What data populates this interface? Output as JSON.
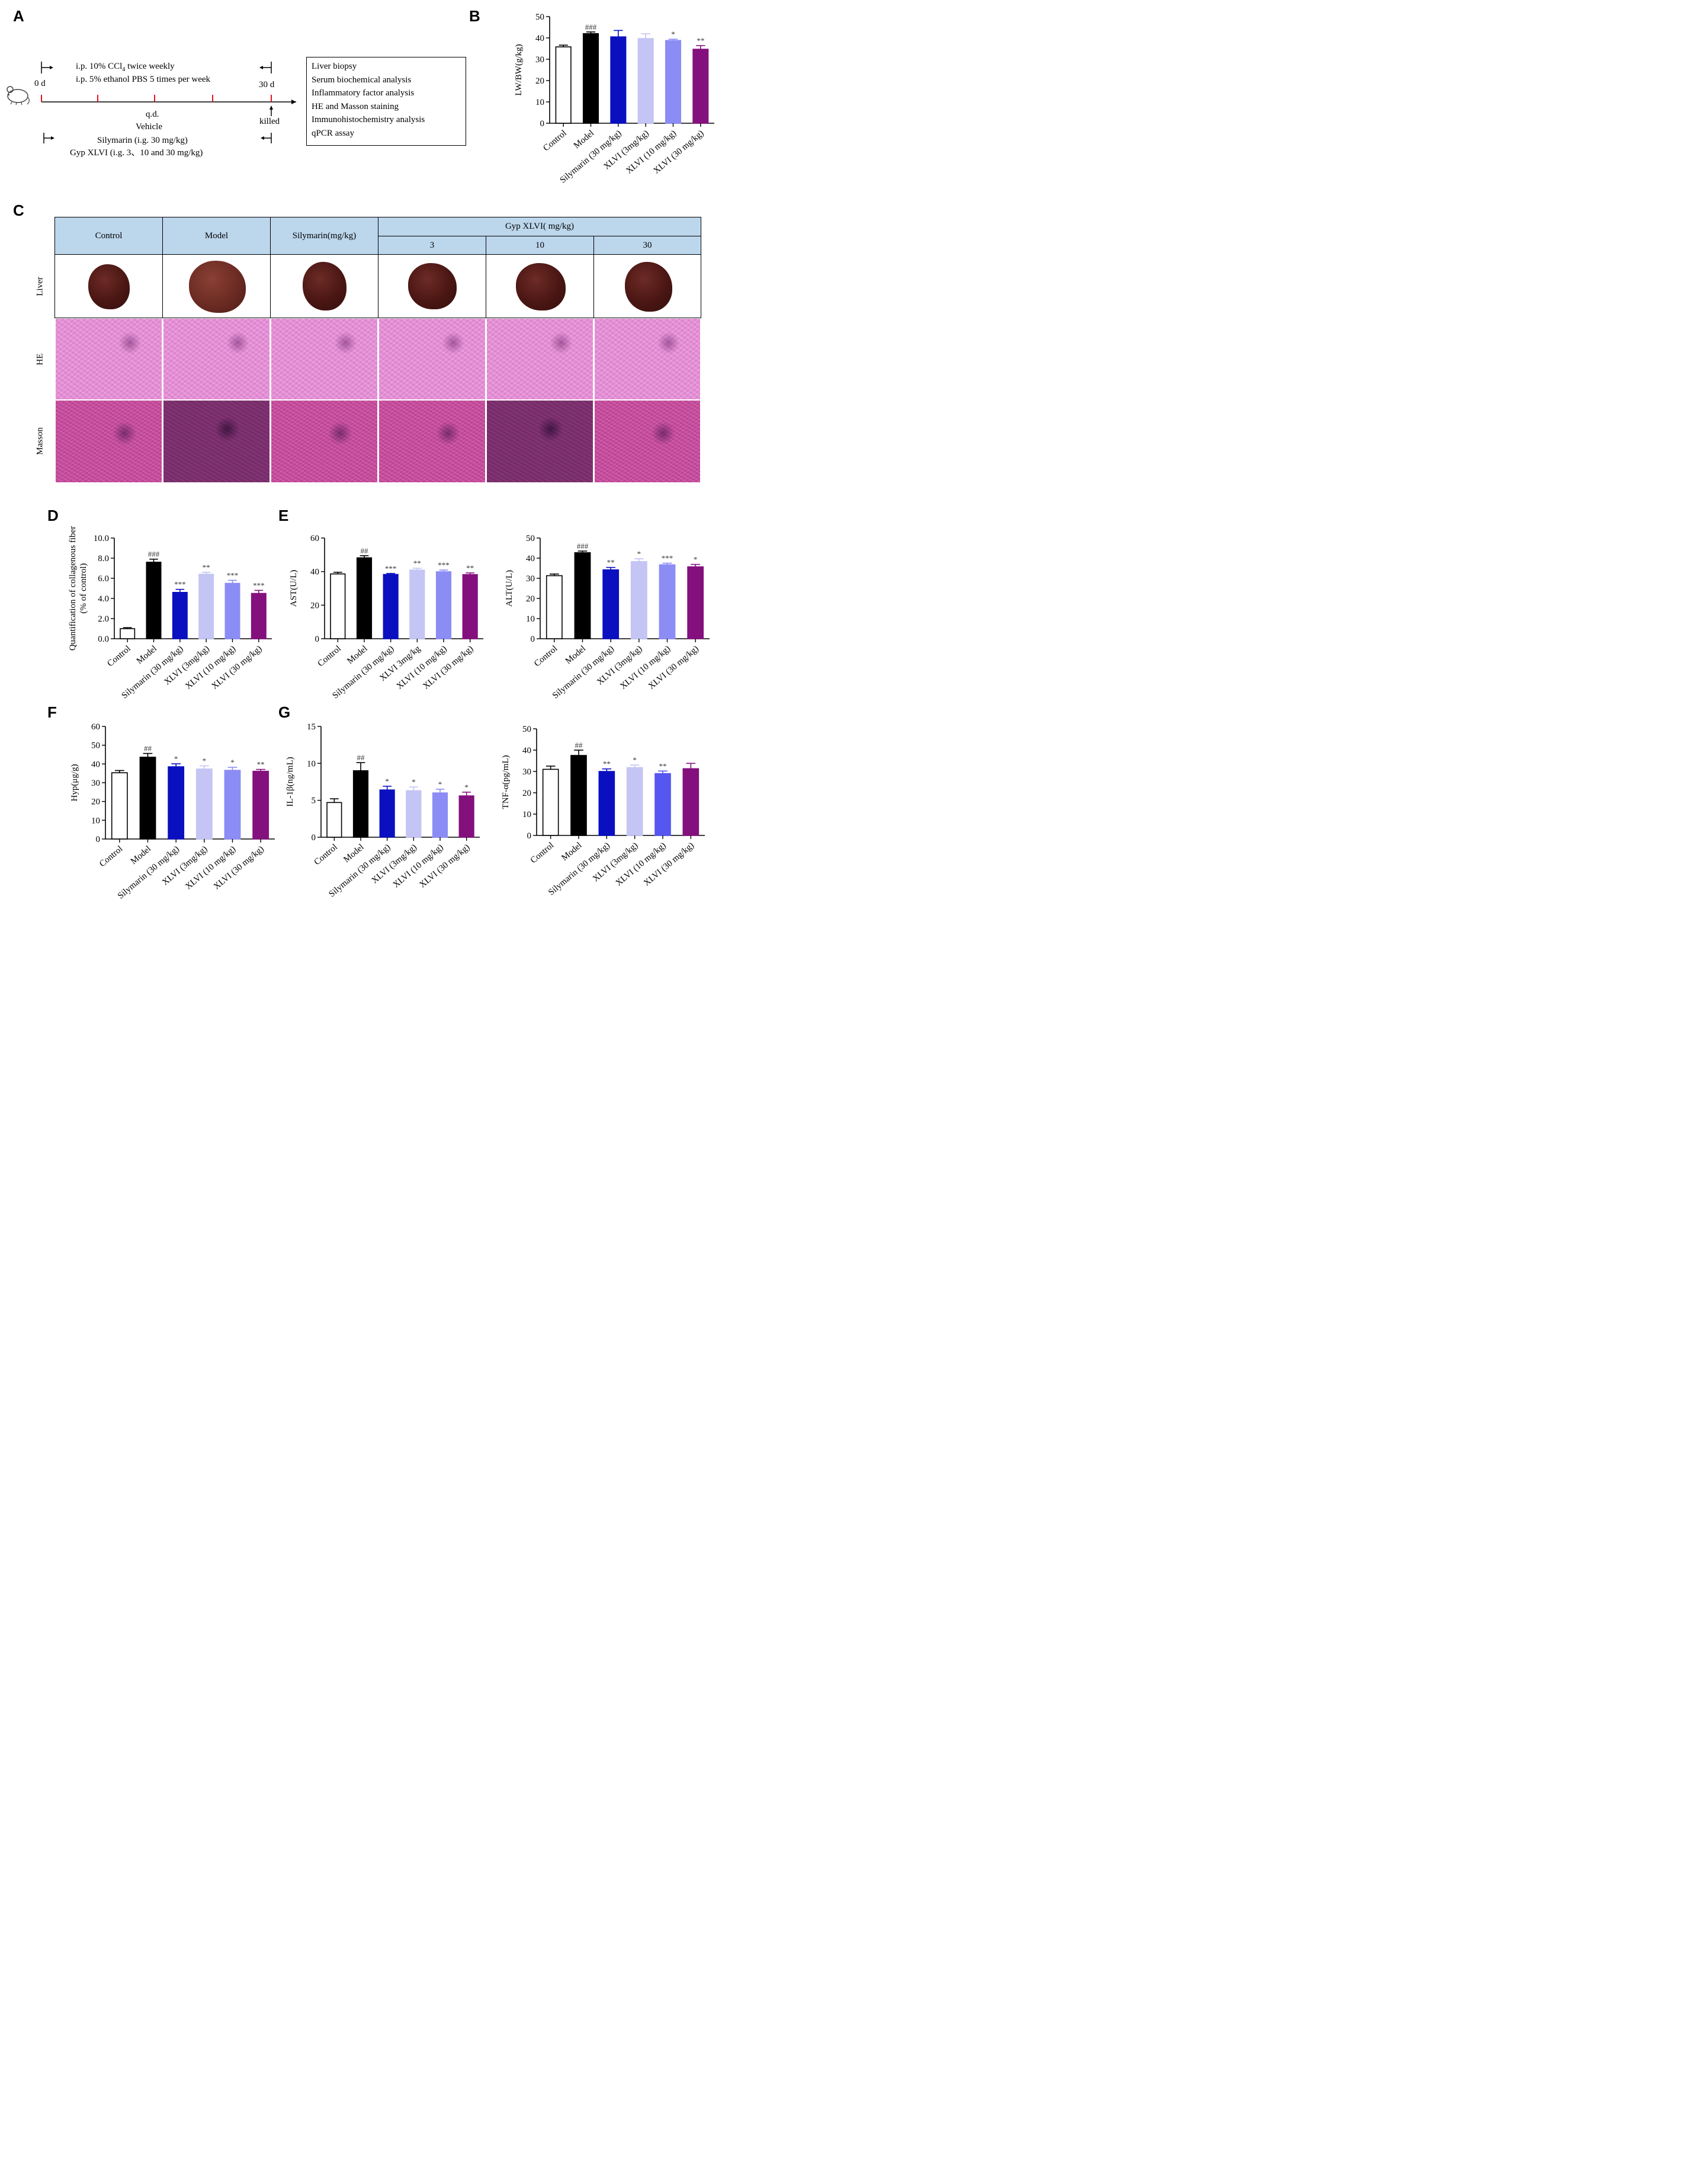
{
  "panels": {
    "A": "A",
    "B": "B",
    "C": "C",
    "D": "D",
    "E": "E",
    "F": "F",
    "G": "G"
  },
  "schematic": {
    "day_start": "0 d",
    "day_end": "30 d",
    "model_line1": "i.p. 10% CCl",
    "model_line1_sub": "4",
    "model_line1_tail": " twice weekly",
    "model_line2": "i.p. 5% ethanol PBS 5 times per week",
    "qd": "q.d.",
    "vehicle": "Vehicle",
    "silymarin": "Silymarin (i.g. 30 mg/kg)",
    "gyp": "Gyp XLVI (i.g. 3、10 and 30 mg/kg)",
    "killed": "killed",
    "steps": [
      "Liver biopsy",
      "Serum biochemical analysis",
      "Inflammatory factor analysis",
      "HE and Masson staining",
      "Immunohistochemistry analysis",
      "qPCR assay"
    ]
  },
  "table_c": {
    "headers": [
      "Control",
      "Model",
      "Silymarin(mg/kg)"
    ],
    "gyp_header": "Gyp XLVI( mg/kg)",
    "doses": [
      "3",
      "10",
      "30"
    ],
    "rows": [
      "Liver",
      "HE",
      "Masson"
    ]
  },
  "colors": {
    "control": "#ffffff",
    "model": "#000000",
    "silymarin": "#0a10c0",
    "xlvi3": "#c4c4f5",
    "xlvi10": "#8c8cf5",
    "xlvi30": "#84107e",
    "tnf_xlvi10": "#5656f0"
  },
  "chart_data": [
    {
      "id": "B",
      "type": "bar",
      "ylabel": "LW/BW(g/kg)",
      "ylim": [
        0,
        50
      ],
      "yticks": [
        "0",
        "10",
        "20",
        "30",
        "40",
        "50"
      ],
      "categories": [
        "Control",
        "Model",
        "Silymarin (30 mg/kg)",
        "XLVI (3mg/kg)",
        "XLVI (10 mg/kg)",
        "XLVI (30 mg/kg)"
      ],
      "values": [
        35.8,
        42,
        40.5,
        39.7,
        38.8,
        34.7
      ],
      "errors": [
        0.8,
        0.8,
        3,
        2.2,
        0.6,
        1.7
      ],
      "annotations": [
        "",
        "###",
        "",
        "",
        "*",
        "**"
      ]
    },
    {
      "id": "D",
      "type": "bar",
      "ylabel": "Quantification of collagenous fiber",
      "ylabel2": "(% of control)",
      "ylim": [
        0,
        10
      ],
      "yticks": [
        "0.0",
        "2.0",
        "4.0",
        "6.0",
        "8.0",
        "10.0"
      ],
      "categories": [
        "Control",
        "Model",
        "Silymarin (30 mg/kg)",
        "XLVI (3mg/kg)",
        "XLVI (10 mg/kg)",
        "XLVI (30 mg/kg)"
      ],
      "values": [
        1.0,
        7.6,
        4.6,
        6.4,
        5.5,
        4.5
      ],
      "errors": [
        0.1,
        0.3,
        0.3,
        0.2,
        0.3,
        0.3
      ],
      "annotations": [
        "",
        "###",
        "***",
        "**",
        "***",
        "***"
      ]
    },
    {
      "id": "E1",
      "type": "bar",
      "ylabel": "AST(U/L)",
      "ylim": [
        0,
        60
      ],
      "yticks": [
        "0",
        "20",
        "40",
        "60"
      ],
      "categories": [
        "Control",
        "Model",
        "Silymarin (30 mg/kg)",
        "XLVI 3mg/kg",
        "XLVI (10 mg/kg)",
        "XLVI (30 mg/kg)"
      ],
      "values": [
        38.6,
        48.2,
        38.3,
        40.9,
        39.9,
        38.2
      ],
      "errors": [
        1,
        1.3,
        0.6,
        1.1,
        1,
        1
      ],
      "annotations": [
        "",
        "##",
        "***",
        "**",
        "***",
        "**"
      ]
    },
    {
      "id": "E2",
      "type": "bar",
      "ylabel": "ALT(U/L)",
      "ylim": [
        0,
        50
      ],
      "yticks": [
        "0",
        "10",
        "20",
        "30",
        "40",
        "50"
      ],
      "categories": [
        "Control",
        "Model",
        "Silymarin (30 mg/kg)",
        "XLVI (3mg/kg)",
        "XLVI (10 mg/kg)",
        "XLVI (30 mg/kg)"
      ],
      "values": [
        31.3,
        42.7,
        34.2,
        38.3,
        36.7,
        35.7
      ],
      "errors": [
        0.8,
        0.8,
        1.2,
        1.4,
        0.8,
        1.2
      ],
      "annotations": [
        "",
        "###",
        "**",
        "*",
        "***",
        "*"
      ]
    },
    {
      "id": "F",
      "type": "bar",
      "ylabel": "Hyp(μg/g)",
      "ylim": [
        0,
        60
      ],
      "yticks": [
        "0",
        "10",
        "20",
        "30",
        "40",
        "50",
        "60"
      ],
      "categories": [
        "Control",
        "Model",
        "Silymarin (30 mg/kg)",
        "XLVI (3mg/kg)",
        "XLVI (10 mg/kg)",
        "XLVI (30 mg/kg)"
      ],
      "values": [
        35.3,
        43.6,
        38.5,
        37.3,
        36.6,
        36.1
      ],
      "errors": [
        1.2,
        2,
        1.6,
        1.7,
        1.6,
        1
      ],
      "annotations": [
        "",
        "##",
        "*",
        "*",
        "*",
        "**"
      ]
    },
    {
      "id": "G1",
      "type": "bar",
      "ylabel": "IL-1β(ng/mL)",
      "ylim": [
        0,
        15
      ],
      "yticks": [
        "0",
        "5",
        "10",
        "15"
      ],
      "categories": [
        "Control",
        "Model",
        "Silymarin (30 mg/kg)",
        "XLVI (3mg/kg)",
        "XLVI (10 mg/kg)",
        "XLVI (30 mg/kg)"
      ],
      "values": [
        4.7,
        9.0,
        6.4,
        6.3,
        6.0,
        5.6
      ],
      "errors": [
        0.5,
        1.1,
        0.5,
        0.5,
        0.5,
        0.5
      ],
      "annotations": [
        "",
        "##",
        "*",
        "*",
        "*",
        "*"
      ]
    },
    {
      "id": "G2",
      "type": "bar",
      "ylabel": "TNF-α(pg/mL)",
      "ylim": [
        0,
        50
      ],
      "yticks": [
        "0",
        "10",
        "20",
        "30",
        "40",
        "50"
      ],
      "categories": [
        "Control",
        "Model",
        "Silymarin (30 mg/kg)",
        "XLVI (3mg/kg)",
        "XLVI (10 mg/kg)",
        "XLVI (30 mg/kg)"
      ],
      "values": [
        31.0,
        37.5,
        30.0,
        31.8,
        29.0,
        31.3
      ],
      "errors": [
        1.5,
        2.5,
        1.2,
        1.2,
        1.2,
        2.5
      ],
      "annotations": [
        "",
        "##",
        "**",
        "*",
        "**",
        ""
      ]
    }
  ]
}
